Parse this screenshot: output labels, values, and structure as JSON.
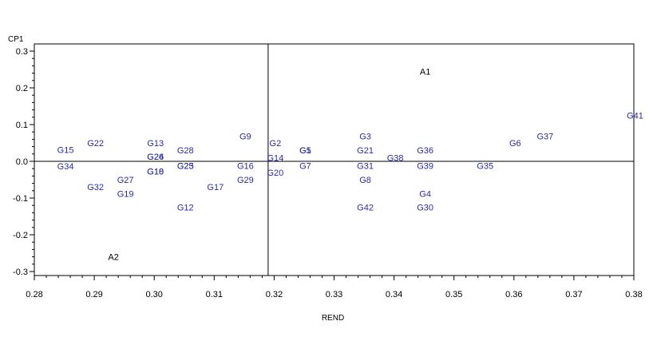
{
  "chart_data": {
    "type": "scatter",
    "xlabel": "REND",
    "ylabel": "CP1",
    "xlim": [
      0.28,
      0.38
    ],
    "ylim": [
      -0.3,
      0.3
    ],
    "x_ticks": [
      "0.28",
      "0.29",
      "0.30",
      "0.31",
      "0.32",
      "0.33",
      "0.34",
      "0.35",
      "0.36",
      "0.37",
      "0.38"
    ],
    "y_ticks": [
      "0.3",
      "0.2",
      "0.1",
      "0.0",
      "-0.1",
      "-0.2",
      "-0.3"
    ],
    "reference_lines": {
      "x": 0.319,
      "y": 0.0
    },
    "label_color": "#2a2aa8",
    "axis_point_color": "#000000",
    "points": [
      {
        "label": "G15",
        "x": 0.2852,
        "y": 0.032
      },
      {
        "label": "G34",
        "x": 0.2852,
        "y": -0.013
      },
      {
        "label": "G22",
        "x": 0.2902,
        "y": 0.05
      },
      {
        "label": "G32",
        "x": 0.2902,
        "y": -0.07
      },
      {
        "label": "G27",
        "x": 0.2952,
        "y": -0.05
      },
      {
        "label": "G19",
        "x": 0.2952,
        "y": -0.088
      },
      {
        "label": "G13",
        "x": 0.3002,
        "y": 0.05
      },
      {
        "label": "G24",
        "x": 0.3002,
        "y": 0.013
      },
      {
        "label": "G26",
        "x": 0.3002,
        "y": 0.013
      },
      {
        "label": "G18",
        "x": 0.3002,
        "y": -0.027
      },
      {
        "label": "G10",
        "x": 0.3002,
        "y": -0.027
      },
      {
        "label": "G28",
        "x": 0.3052,
        "y": 0.03
      },
      {
        "label": "G25",
        "x": 0.3052,
        "y": -0.012
      },
      {
        "label": "G23",
        "x": 0.3052,
        "y": -0.012
      },
      {
        "label": "G12",
        "x": 0.3052,
        "y": -0.125
      },
      {
        "label": "G17",
        "x": 0.3102,
        "y": -0.07
      },
      {
        "label": "G9",
        "x": 0.3152,
        "y": 0.068
      },
      {
        "label": "G16",
        "x": 0.3152,
        "y": -0.012
      },
      {
        "label": "G29",
        "x": 0.3152,
        "y": -0.05
      },
      {
        "label": "G2",
        "x": 0.3202,
        "y": 0.05
      },
      {
        "label": "G14",
        "x": 0.3202,
        "y": 0.01
      },
      {
        "label": "G20",
        "x": 0.3202,
        "y": -0.03
      },
      {
        "label": "G5",
        "x": 0.3252,
        "y": 0.03
      },
      {
        "label": "G1",
        "x": 0.3252,
        "y": 0.03
      },
      {
        "label": "G7",
        "x": 0.3252,
        "y": -0.012
      },
      {
        "label": "G3",
        "x": 0.3352,
        "y": 0.068
      },
      {
        "label": "G21",
        "x": 0.3352,
        "y": 0.03
      },
      {
        "label": "G31",
        "x": 0.3352,
        "y": -0.012
      },
      {
        "label": "G8",
        "x": 0.3352,
        "y": -0.05
      },
      {
        "label": "G42",
        "x": 0.3352,
        "y": -0.125
      },
      {
        "label": "G38",
        "x": 0.3402,
        "y": 0.01
      },
      {
        "label": "G36",
        "x": 0.3452,
        "y": 0.03
      },
      {
        "label": "G39",
        "x": 0.3452,
        "y": -0.012
      },
      {
        "label": "G4",
        "x": 0.3452,
        "y": -0.088
      },
      {
        "label": "G30",
        "x": 0.3452,
        "y": -0.125
      },
      {
        "label": "G35",
        "x": 0.3552,
        "y": -0.012
      },
      {
        "label": "G6",
        "x": 0.3602,
        "y": 0.05
      },
      {
        "label": "G37",
        "x": 0.3652,
        "y": 0.068
      },
      {
        "label": "G41",
        "x": 0.3802,
        "y": 0.125
      }
    ],
    "axis_points": [
      {
        "label": "A1",
        "x": 0.3452,
        "y": 0.245
      },
      {
        "label": "A2",
        "x": 0.2932,
        "y": -0.26
      }
    ]
  }
}
